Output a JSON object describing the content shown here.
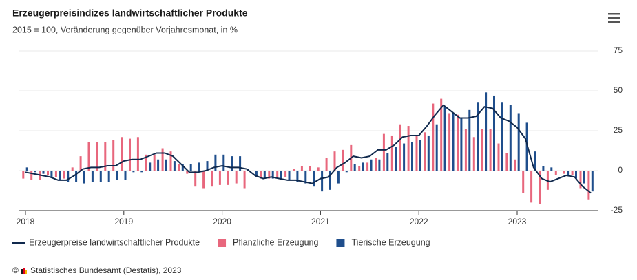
{
  "chart_data": {
    "type": "bar",
    "title": "Erzeugerpreisindizes landwirtschaftlicher Produkte",
    "subtitle": "2015 = 100, Veränderung gegenüber Vorjahresmonat, in %",
    "categories": [
      "2018",
      null,
      null,
      null,
      null,
      null,
      null,
      null,
      null,
      null,
      null,
      null,
      "2019",
      null,
      null,
      null,
      null,
      null,
      null,
      null,
      null,
      null,
      null,
      null,
      "2020",
      null,
      null,
      null,
      null,
      null,
      null,
      null,
      null,
      null,
      null,
      null,
      "2021",
      null,
      null,
      null,
      null,
      null,
      null,
      null,
      null,
      null,
      null,
      null,
      "2022",
      null,
      null,
      null,
      null,
      null,
      null,
      null,
      null,
      null,
      null,
      null,
      "2023",
      null,
      null,
      null,
      null,
      null,
      null,
      null,
      null,
      null
    ],
    "series": [
      {
        "name": "Erzeugerpreise landwirtschaftlicher Produkte",
        "type": "line",
        "color": "#10294d",
        "values": [
          -1,
          -2,
          -3,
          -4,
          -6,
          -6,
          -3,
          1,
          2,
          2,
          3,
          3,
          6,
          7,
          7,
          9,
          11,
          11,
          9,
          4,
          -1,
          -1,
          0,
          2,
          3,
          2,
          2,
          1,
          -3,
          -5,
          -4,
          -5,
          -6,
          -6,
          -7,
          -8,
          -5,
          -4,
          2,
          5,
          9,
          8,
          9,
          13,
          13,
          16,
          21,
          22,
          22,
          28,
          35,
          41,
          37,
          33,
          33,
          34,
          40,
          39,
          33,
          31,
          27,
          20,
          2,
          -5,
          -7,
          -5,
          -3,
          -4,
          -10,
          -14
        ]
      },
      {
        "name": "Pflanzliche Erzeugung",
        "type": "bar",
        "color": "#e8677d",
        "values": [
          -5,
          -6,
          -6,
          -3,
          -4,
          -5,
          2,
          9,
          18,
          18,
          18,
          19,
          21,
          20,
          21,
          10,
          10,
          14,
          12,
          4,
          -2,
          -10,
          -11,
          -10,
          -9,
          -9,
          -8,
          -11,
          0,
          -5,
          -5,
          -4,
          -4,
          1,
          3,
          3,
          2,
          8,
          12,
          13,
          16,
          3,
          5,
          8,
          23,
          22,
          29,
          28,
          22,
          24,
          42,
          45,
          36,
          35,
          26,
          21,
          26,
          26,
          17,
          11,
          7,
          -14,
          -20,
          -21,
          -12,
          -3,
          -2,
          -3,
          -11,
          -18
        ]
      },
      {
        "name": "Tierische Erzeugung",
        "type": "bar",
        "color": "#1f4e8c",
        "values": [
          2,
          -1,
          -2,
          -4,
          -6,
          -7,
          -7,
          -8,
          -7,
          -7,
          -7,
          -6,
          -6,
          -1,
          -1,
          5,
          7,
          7,
          6,
          4,
          4,
          5,
          6,
          10,
          10,
          9,
          9,
          1,
          -4,
          -5,
          -5,
          -6,
          -6,
          -7,
          -8,
          -10,
          -13,
          -12,
          -8,
          -1,
          4,
          5,
          7,
          7,
          11,
          15,
          17,
          18,
          19,
          22,
          29,
          40,
          36,
          33,
          38,
          43,
          49,
          47,
          43,
          41,
          36,
          30,
          12,
          3,
          2,
          0,
          -3,
          -5,
          -8,
          -13
        ]
      }
    ],
    "ylim": [
      -25,
      75
    ],
    "yticks": [
      -25,
      0,
      25,
      50,
      75
    ],
    "grid": true,
    "legend": "bottom",
    "source": "Statistisches Bundesamt (Destatis), 2023"
  }
}
